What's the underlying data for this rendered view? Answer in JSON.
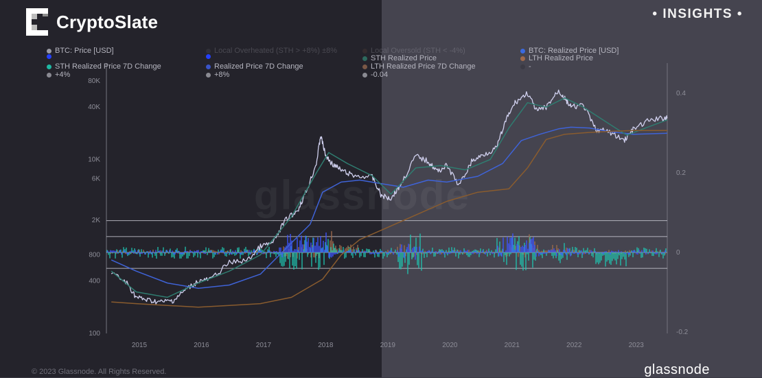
{
  "brand": {
    "name": "CryptoSlate",
    "badge": "• INSIGHTS •"
  },
  "watermark": "glassnode",
  "footer": {
    "copyright": "© 2023 Glassnode. All Rights Reserved.",
    "logo": "glassnode"
  },
  "legend": [
    {
      "label": "BTC: Price [USD]",
      "color": "#9a9aa3",
      "faded": false
    },
    {
      "label": "",
      "color": "#2440ff",
      "faded": false
    },
    {
      "label": "STH Realized Price 7D Change",
      "color": "#1fb8a3",
      "faded": false
    },
    {
      "label": "+4%",
      "color": "#8a8a92",
      "faded": false
    },
    {
      "label": "Local Overheated (STH > +8%) ±8%",
      "color": "#5a5a64",
      "faded": true
    },
    {
      "label": "",
      "color": "#2440ff",
      "faded": false
    },
    {
      "label": "Realized Price 7D Change",
      "color": "#3a54c8",
      "faded": false
    },
    {
      "label": "+8%",
      "color": "#8a8a92",
      "faded": false
    },
    {
      "label": "Local Oversold (STH < -4%)",
      "color": "#6a4a3a",
      "faded": true
    },
    {
      "label": "STH Realized Price",
      "color": "#2e6a5e",
      "faded": false
    },
    {
      "label": "LTH Realized Price 7D Change",
      "color": "#7a5846",
      "faded": false
    },
    {
      "label": "-0.04",
      "color": "#8a8a92",
      "faded": false
    },
    {
      "label": "BTC: Realized Price [USD]",
      "color": "#3a6ae0",
      "faded": false
    },
    {
      "label": "LTH Realized Price",
      "color": "#a0694a",
      "faded": false
    },
    {
      "label": "-",
      "color": "#3b3a44",
      "faded": false
    }
  ],
  "chart_data": {
    "type": "line",
    "x_ticks": [
      "2015",
      "2016",
      "2017",
      "2018",
      "2019",
      "2020",
      "2021",
      "2022",
      "2023"
    ],
    "y_left": {
      "scale": "log",
      "ticks": [
        "100",
        "400",
        "800",
        "2K",
        "6K",
        "10K",
        "40K",
        "80K"
      ]
    },
    "y_right": {
      "scale": "linear",
      "ticks": [
        "0.4",
        "0.2",
        "0",
        "-0.2"
      ],
      "range": [
        -0.2,
        0.45
      ]
    },
    "reference_lines": [
      0.08,
      0.04,
      0,
      -0.04
    ],
    "series": [
      {
        "name": "BTC: Price [USD]",
        "color": "#d0d0ee",
        "axis": "left",
        "points": [
          [
            2014.6,
            500
          ],
          [
            2014.85,
            380
          ],
          [
            2015.0,
            260
          ],
          [
            2015.2,
            240
          ],
          [
            2015.4,
            230
          ],
          [
            2015.6,
            240
          ],
          [
            2015.8,
            320
          ],
          [
            2016.0,
            400
          ],
          [
            2016.2,
            420
          ],
          [
            2016.5,
            650
          ],
          [
            2016.8,
            700
          ],
          [
            2017.0,
            1000
          ],
          [
            2017.2,
            1100
          ],
          [
            2017.4,
            2000
          ],
          [
            2017.6,
            2600
          ],
          [
            2017.75,
            4500
          ],
          [
            2017.9,
            9000
          ],
          [
            2017.97,
            19000
          ],
          [
            2018.05,
            11000
          ],
          [
            2018.15,
            9000
          ],
          [
            2018.3,
            7500
          ],
          [
            2018.5,
            6500
          ],
          [
            2018.8,
            6300
          ],
          [
            2018.95,
            3800
          ],
          [
            2019.1,
            3600
          ],
          [
            2019.25,
            5000
          ],
          [
            2019.5,
            11000
          ],
          [
            2019.7,
            9500
          ],
          [
            2019.85,
            7300
          ],
          [
            2020.0,
            8500
          ],
          [
            2020.2,
            5000
          ],
          [
            2020.4,
            9500
          ],
          [
            2020.6,
            11500
          ],
          [
            2020.8,
            13500
          ],
          [
            2020.95,
            28000
          ],
          [
            2021.1,
            45000
          ],
          [
            2021.3,
            58000
          ],
          [
            2021.45,
            36000
          ],
          [
            2021.6,
            40000
          ],
          [
            2021.8,
            62000
          ],
          [
            2021.9,
            50000
          ],
          [
            2022.0,
            40000
          ],
          [
            2022.2,
            42000
          ],
          [
            2022.4,
            22000
          ],
          [
            2022.6,
            21000
          ],
          [
            2022.85,
            16500
          ],
          [
            2023.0,
            22000
          ],
          [
            2023.25,
            28000
          ],
          [
            2023.5,
            30000
          ],
          [
            2023.55,
            30500
          ]
        ]
      },
      {
        "name": "BTC: Realized Price [USD]",
        "color": "#3f63d8",
        "axis": "left",
        "points": [
          [
            2014.6,
            700
          ],
          [
            2015.0,
            520
          ],
          [
            2015.5,
            380
          ],
          [
            2016.0,
            330
          ],
          [
            2016.5,
            360
          ],
          [
            2017.0,
            480
          ],
          [
            2017.5,
            1100
          ],
          [
            2017.8,
            1800
          ],
          [
            2018.0,
            4200
          ],
          [
            2018.3,
            5500
          ],
          [
            2018.6,
            5800
          ],
          [
            2019.0,
            5200
          ],
          [
            2019.3,
            4800
          ],
          [
            2019.7,
            5800
          ],
          [
            2020.0,
            5500
          ],
          [
            2020.5,
            6400
          ],
          [
            2020.9,
            9000
          ],
          [
            2021.2,
            16500
          ],
          [
            2021.5,
            19500
          ],
          [
            2021.8,
            22500
          ],
          [
            2022.0,
            23500
          ],
          [
            2022.3,
            23000
          ],
          [
            2022.6,
            21000
          ],
          [
            2023.0,
            19500
          ],
          [
            2023.55,
            20000
          ]
        ]
      },
      {
        "name": "STH Realized Price",
        "color": "#2f7c70",
        "axis": "left",
        "points": [
          [
            2014.6,
            520
          ],
          [
            2015.0,
            300
          ],
          [
            2015.5,
            260
          ],
          [
            2016.0,
            380
          ],
          [
            2016.5,
            520
          ],
          [
            2017.0,
            800
          ],
          [
            2017.5,
            2200
          ],
          [
            2017.9,
            7000
          ],
          [
            2018.1,
            12000
          ],
          [
            2018.4,
            9000
          ],
          [
            2018.8,
            6500
          ],
          [
            2019.1,
            4000
          ],
          [
            2019.5,
            8000
          ],
          [
            2019.9,
            8500
          ],
          [
            2020.3,
            7600
          ],
          [
            2020.7,
            10000
          ],
          [
            2021.0,
            23000
          ],
          [
            2021.3,
            45000
          ],
          [
            2021.6,
            40000
          ],
          [
            2021.9,
            51000
          ],
          [
            2022.2,
            40000
          ],
          [
            2022.5,
            29000
          ],
          [
            2022.9,
            19000
          ],
          [
            2023.2,
            23000
          ],
          [
            2023.55,
            28500
          ]
        ]
      },
      {
        "name": "LTH Realized Price",
        "color": "#8a5c2e",
        "axis": "left",
        "points": [
          [
            2014.6,
            230
          ],
          [
            2015.0,
            220
          ],
          [
            2015.5,
            210
          ],
          [
            2016.0,
            200
          ],
          [
            2016.5,
            210
          ],
          [
            2017.0,
            220
          ],
          [
            2017.5,
            260
          ],
          [
            2018.0,
            420
          ],
          [
            2018.3,
            800
          ],
          [
            2018.6,
            1200
          ],
          [
            2019.0,
            1600
          ],
          [
            2019.5,
            2300
          ],
          [
            2020.0,
            3300
          ],
          [
            2020.5,
            4200
          ],
          [
            2021.0,
            4600
          ],
          [
            2021.3,
            8000
          ],
          [
            2021.6,
            17000
          ],
          [
            2021.9,
            19500
          ],
          [
            2022.3,
            20500
          ],
          [
            2022.6,
            21000
          ],
          [
            2023.0,
            21500
          ],
          [
            2023.55,
            21500
          ]
        ]
      }
    ],
    "oscillators": [
      {
        "name": "STH Realized Price 7D Change",
        "color": "#1fc9b4",
        "axis": "right"
      },
      {
        "name": "Realized Price 7D Change",
        "color": "#3d55ff",
        "axis": "right"
      },
      {
        "name": "LTH Realized Price 7D Change",
        "color": "#9c6a4c",
        "axis": "right"
      }
    ]
  }
}
